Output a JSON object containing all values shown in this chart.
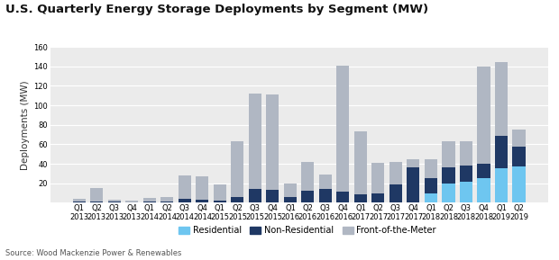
{
  "title": "U.S. Quarterly Energy Storage Deployments by Segment (MW)",
  "ylabel": "Deployments (MW)",
  "source": "Source: Wood Mackenzie Power & Renewables",
  "ylim": [
    0,
    160
  ],
  "yticks": [
    20,
    40,
    60,
    80,
    100,
    120,
    140,
    160
  ],
  "quarters": [
    "Q1",
    "Q2",
    "Q3",
    "Q4",
    "Q1",
    "Q2",
    "Q3",
    "Q4",
    "Q1",
    "Q2",
    "Q3",
    "Q4",
    "Q1",
    "Q2",
    "Q3",
    "Q4",
    "Q1",
    "Q2",
    "Q3",
    "Q4",
    "Q1",
    "Q2",
    "Q3",
    "Q4",
    "Q1",
    "Q2"
  ],
  "years": [
    "2013",
    "2013",
    "2013",
    "2013",
    "2014",
    "2014",
    "2014",
    "2014",
    "2015",
    "2015",
    "2015",
    "2015",
    "2016",
    "2016",
    "2016",
    "2016",
    "2017",
    "2017",
    "2017",
    "2017",
    "2018",
    "2018",
    "2018",
    "2018",
    "2019",
    "2019"
  ],
  "residential": [
    0,
    0,
    0,
    0,
    0,
    0,
    0,
    0,
    0,
    0,
    0,
    0,
    0,
    0,
    0,
    0,
    0,
    0,
    0,
    0,
    10,
    20,
    22,
    25,
    35,
    37
  ],
  "non_residential": [
    1,
    1,
    1,
    0.5,
    1,
    1,
    4,
    3,
    2,
    6,
    14,
    13,
    6,
    12,
    14,
    11,
    9,
    10,
    19,
    36,
    15,
    16,
    16,
    15,
    34,
    21
  ],
  "front_of_meter": [
    3,
    14,
    2,
    2,
    4,
    5,
    24,
    24,
    17,
    57,
    98,
    98,
    14,
    30,
    15,
    130,
    64,
    31,
    23,
    9,
    20,
    27,
    25,
    100,
    75,
    17
  ],
  "color_residential": "#6ec6f0",
  "color_non_residential": "#1f3864",
  "color_front_of_meter": "#b0b7c3",
  "legend_labels": [
    "Residential",
    "Non-Residential",
    "Front-of-the-Meter"
  ],
  "bg_color": "#ebebeb",
  "title_fontsize": 9.5,
  "ylabel_fontsize": 7.5,
  "tick_fontsize": 6,
  "legend_fontsize": 7,
  "source_fontsize": 6
}
